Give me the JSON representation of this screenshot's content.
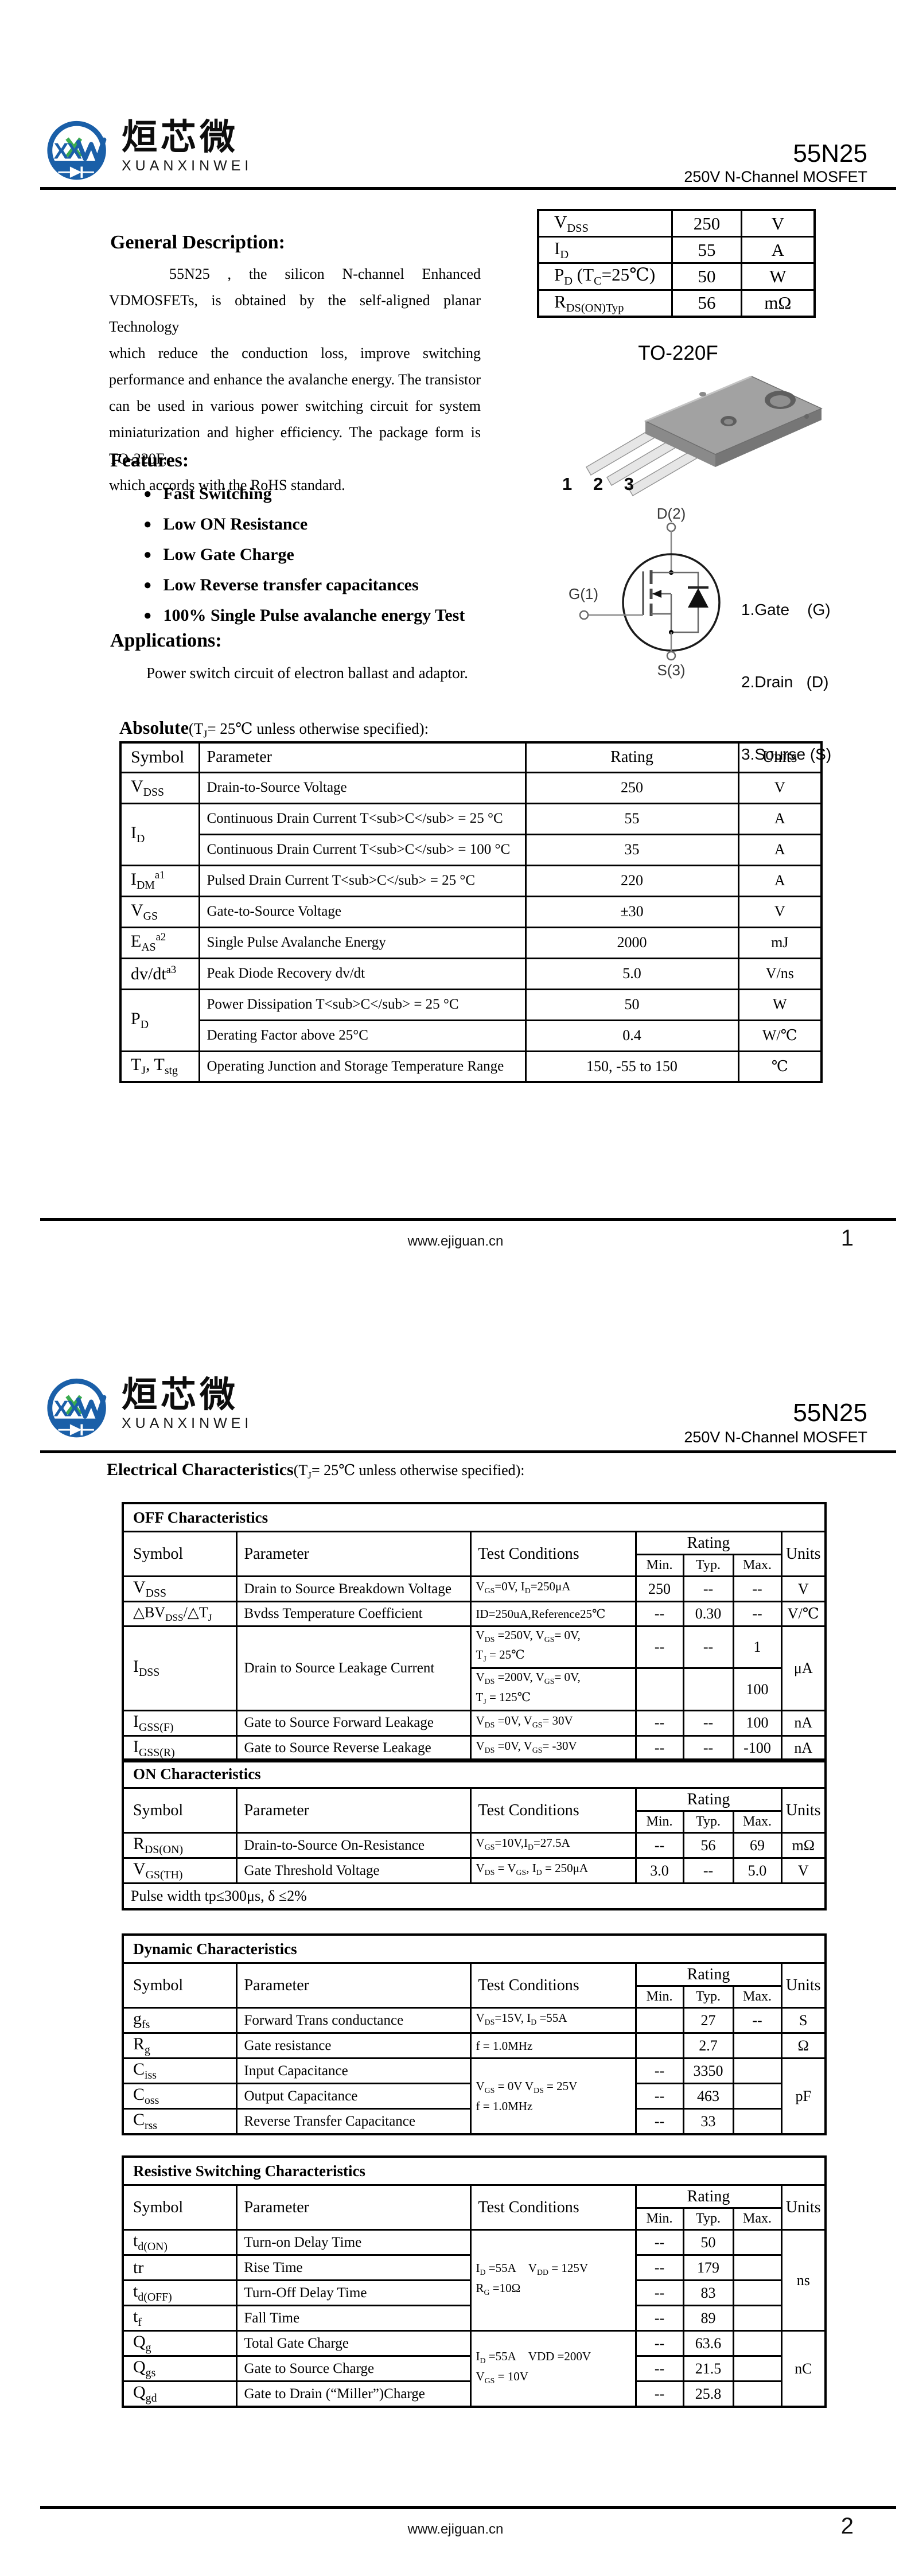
{
  "colors": {
    "brand_blue": "#1a5fa8",
    "brand_green": "#3aab4e",
    "rule_black": "#000000"
  },
  "brand": {
    "monogram": "XXW",
    "monogram_xx": "XX",
    "name_cjk": "烜芯微",
    "name_latin": "XUANXINWEI"
  },
  "header": {
    "part_number": "55N25",
    "subtitle": "250V N-Channel MOSFET"
  },
  "footer": {
    "website": "www.ejiguan.cn",
    "page1_number": "1",
    "page2_number": "2"
  },
  "page1": {
    "general_description": {
      "heading": "General Description:",
      "lines": [
        "55N25 , the silicon N-channel Enhanced",
        "VDMOSFETs, is obtained by the self-aligned planar Technology",
        "which reduce the conduction loss, improve switching",
        "performance and enhance the avalanche energy. The transistor",
        "can be used in various power switching circuit for system",
        "miniaturization and higher efficiency. The package form is TO-220F,",
        "which accords with the RoHS standard."
      ]
    },
    "quick_specs": {
      "rows": [
        {
          "sym": "V<sub>DSS</sub>",
          "val": "250",
          "unit": "V"
        },
        {
          "sym": "I<sub>D</sub>",
          "val": "55",
          "unit": "A"
        },
        {
          "sym": "P<sub>D</sub> (T<sub>C</sub>=25℃)",
          "val": "50",
          "unit": "W"
        },
        {
          "sym": "R<sub>DS(ON)Typ</sub>",
          "val": "56",
          "unit": "mΩ"
        }
      ]
    },
    "features": {
      "heading": "Features:",
      "bullet": "●",
      "items": [
        "Fast Switching",
        "Low ON Resistance",
        "Low Gate Charge",
        "Low Reverse transfer capacitances",
        "100% Single Pulse avalanche energy Test"
      ]
    },
    "applications": {
      "heading": "Applications:",
      "text": "Power switch circuit of electron ballast and adaptor."
    },
    "package": {
      "label": "TO-220F",
      "pin_numbers": "1 2 3",
      "symbol_labels": {
        "drain": "D(2)",
        "gate": "G(1)",
        "source": "S(3)"
      },
      "pin_legend": [
        "1.Gate    (G)",
        "2.Drain   (D)",
        "3.Sourse (S)"
      ]
    },
    "absolute": {
      "heading_bold": "Absolute",
      "heading_rest": "(T<sub>J</sub>= 25℃  unless otherwise specified):",
      "columns": {
        "symbol": "Symbol",
        "parameter": "Parameter",
        "rating": "Rating",
        "units": "Units"
      },
      "rows": [
        {
          "sym": "V<sub>DSS</sub>",
          "param": "Drain-to-Source Voltage",
          "rating": "250",
          "units": "V"
        },
        {
          "sym": "I<sub>D</sub>",
          "param": "Continuous Drain Current T<sub>C</sub> = 25 °C",
          "rating": "55",
          "units": "A"
        },
        {
          "param": "Continuous Drain Current T<sub>C</sub> = 100 °C",
          "rating": "35",
          "units": "A"
        },
        {
          "sym": "I<sub>DM</sub><sup>a1</sup>",
          "param": "Pulsed Drain Current T<sub>C</sub> = 25 °C",
          "rating": "220",
          "units": "A"
        },
        {
          "sym": "V<sub>GS</sub>",
          "param": "Gate-to-Source Voltage",
          "rating": "±30",
          "units": "V"
        },
        {
          "sym": "E<sub>AS</sub><sup>a2</sup>",
          "param": "Single Pulse Avalanche Energy",
          "rating": "2000",
          "units": "mJ"
        },
        {
          "sym": "dv/dt<sup>a3</sup>",
          "param": "Peak Diode Recovery dv/dt",
          "rating": "5.0",
          "units": "V/ns"
        },
        {
          "sym": "P<sub>D</sub>",
          "param": "Power Dissipation T<sub>C</sub> = 25 °C",
          "rating": "50",
          "units": "W"
        },
        {
          "param": "Derating Factor above 25°C",
          "rating": "0.4",
          "units": "W/℃"
        },
        {
          "sym": "T<sub>J</sub>, T<sub>stg</sub>",
          "param": "Operating Junction and Storage Temperature Range",
          "rating": "150, -55 to 150",
          "units": "℃"
        }
      ]
    }
  },
  "page2": {
    "heading_bold": "Electrical Characteristics",
    "heading_rest": "(T<sub>J</sub>= 25℃  unless otherwise specified):",
    "col_headers": {
      "symbol": "Symbol",
      "parameter": "Parameter",
      "test_conditions": "Test Conditions",
      "rating": "Rating",
      "min": "Min.",
      "typ": "Typ.",
      "max": "Max.",
      "units": "Units"
    },
    "off": {
      "title": "OFF Characteristics",
      "rows": [
        {
          "sym": "V<sub>DSS</sub>",
          "param": "Drain to Source Breakdown Voltage",
          "cond": "V<sub>GS</sub>=0V, I<sub>D</sub>=250μA",
          "min": "250",
          "typ": "--",
          "max": "--",
          "units": "V"
        },
        {
          "sym": "△BV<sub>DSS</sub>/△T<sub>J</sub>",
          "param": "Bvdss Temperature Coefficient",
          "cond": "ID=250uA,Reference25℃",
          "min": "--",
          "typ": "0.30",
          "max": "--",
          "units": "V/℃"
        },
        {
          "sym": "I<sub>DSS</sub>",
          "param": "Drain to Source Leakage Current",
          "cond": "V<sub>DS</sub> =250V, V<sub>GS</sub>= 0V,<br>T<sub>J</sub> = 25℃",
          "min": "--",
          "typ": "--",
          "max": "1",
          "units": "μA"
        },
        {
          "cond": "V<sub>DS</sub> =200V, V<sub>GS</sub>= 0V,<br>T<sub>J</sub> = 125℃",
          "min": "",
          "typ": "",
          "max": "100"
        },
        {
          "sym": "I<sub>GSS(F)</sub>",
          "param": "Gate to Source Forward Leakage",
          "cond": "V<sub>DS</sub> =0V, V<sub>GS</sub>= 30V",
          "min": "--",
          "typ": "--",
          "max": "100",
          "units": "nA"
        },
        {
          "sym": "I<sub>GSS(R)</sub>",
          "param": "Gate to Source Reverse Leakage",
          "cond": "V<sub>DS</sub> =0V, V<sub>GS</sub>= -30V",
          "min": "--",
          "typ": "--",
          "max": "-100",
          "units": "nA"
        }
      ]
    },
    "on": {
      "title": "ON Characteristics",
      "rows": [
        {
          "sym": "R<sub>DS(ON)</sub>",
          "param": "Drain-to-Source On-Resistance",
          "cond": "V<sub>GS</sub>=10V,I<sub>D</sub>=27.5A",
          "min": "--",
          "typ": "56",
          "max": "69",
          "units": "mΩ"
        },
        {
          "sym": "V<sub>GS(TH)</sub>",
          "param": "Gate Threshold Voltage",
          "cond": "V<sub>DS</sub> = V<sub>GS</sub>, I<sub>D</sub> = 250μA",
          "min": "3.0",
          "typ": "--",
          "max": "5.0",
          "units": "V"
        }
      ],
      "note": "Pulse width tp≤300μs, δ ≤2%"
    },
    "dynamic": {
      "title": "Dynamic Characteristics",
      "shared_cond": "V<sub>GS</sub> = 0V V<sub>DS</sub> = 25V<br>f = 1.0MHz",
      "shared_units": "pF",
      "rows": [
        {
          "sym": "g<sub>fs</sub>",
          "param": "Forward Trans conductance",
          "cond": "V<sub>DS</sub>=15V, I<sub>D</sub> =55A",
          "min": "",
          "typ": "27",
          "max": "--",
          "units": "S"
        },
        {
          "sym": "R<sub>g</sub>",
          "param": "Gate resistance",
          "cond": "f = 1.0MHz",
          "min": "",
          "typ": "2.7",
          "max": "",
          "units": "Ω"
        },
        {
          "sym": "C<sub>iss</sub>",
          "param": "Input Capacitance",
          "min": "--",
          "typ": "3350",
          "max": ""
        },
        {
          "sym": "C<sub>oss</sub>",
          "param": "Output Capacitance",
          "min": "--",
          "typ": "463",
          "max": ""
        },
        {
          "sym": "C<sub>rss</sub>",
          "param": "Reverse Transfer Capacitance",
          "min": "--",
          "typ": "33",
          "max": ""
        }
      ]
    },
    "switching": {
      "title": "Resistive Switching Characteristics",
      "shared_cond_t": "I<sub>D</sub> =55A&nbsp;&nbsp;&nbsp;&nbsp;V<sub>DD</sub> = 125V<br>R<sub>G</sub> =10Ω",
      "shared_units_t": "ns",
      "shared_cond_q": "I<sub>D</sub> =55A&nbsp;&nbsp;&nbsp;&nbsp;VDD =200V<br>V<sub>GS</sub> = 10V",
      "shared_units_q": "nC",
      "rows": [
        {
          "sym": "t<sub>d(ON)</sub>",
          "param": "Turn-on Delay Time",
          "min": "--",
          "typ": "50",
          "max": ""
        },
        {
          "sym": "tr",
          "param": "Rise Time",
          "min": "--",
          "typ": "179",
          "max": ""
        },
        {
          "sym": "t<sub>d(OFF)</sub>",
          "param": "Turn-Off Delay Time",
          "min": "--",
          "typ": "83",
          "max": ""
        },
        {
          "sym": "t<sub>f</sub>",
          "param": "Fall Time",
          "min": "--",
          "typ": "89",
          "max": ""
        },
        {
          "sym": "Q<sub>g</sub>",
          "param": "Total Gate Charge",
          "min": "--",
          "typ": "63.6",
          "max": ""
        },
        {
          "sym": "Q<sub>gs</sub>",
          "param": "Gate to Source Charge",
          "min": "--",
          "typ": "21.5",
          "max": ""
        },
        {
          "sym": "Q<sub>gd</sub>",
          "param": "Gate to Drain (“Miller”)Charge",
          "min": "--",
          "typ": "25.8",
          "max": ""
        }
      ]
    }
  }
}
